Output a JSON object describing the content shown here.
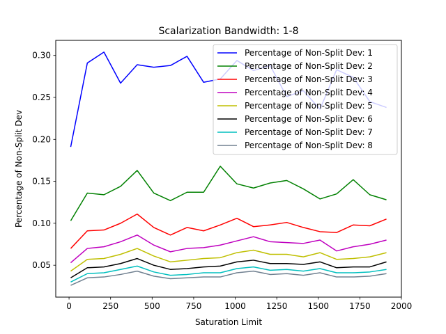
{
  "chart_data": {
    "type": "line",
    "title": "Scalarization Bandwidth: 1-8",
    "xlabel": "Saturation Limit",
    "ylabel": "Percentage of Non-Split Dev",
    "xlim": [
      -80,
      2000
    ],
    "ylim": [
      0.012,
      0.318
    ],
    "xticks": [
      0,
      250,
      500,
      750,
      1000,
      1250,
      1500,
      1750,
      2000
    ],
    "yticks": [
      0.05,
      0.1,
      0.15,
      0.2,
      0.25,
      0.3
    ],
    "xtick_labels": [
      "0",
      "250",
      "500",
      "750",
      "1000",
      "1250",
      "1500",
      "1750",
      "2000"
    ],
    "ytick_labels": [
      "0.05",
      "0.10",
      "0.15",
      "0.20",
      "0.25",
      "0.30"
    ],
    "grid": false,
    "legend_position": "top-right",
    "x": [
      10,
      110,
      210,
      310,
      410,
      510,
      610,
      710,
      810,
      910,
      1010,
      1110,
      1210,
      1310,
      1410,
      1510,
      1610,
      1710,
      1810,
      1910
    ],
    "series": [
      {
        "name": "Percentage of Non-Split Dev: 1",
        "color": "#0000ff",
        "values": [
          0.191,
          0.291,
          0.304,
          0.267,
          0.289,
          0.286,
          0.288,
          0.299,
          0.268,
          0.272,
          0.294,
          0.282,
          0.288,
          0.251,
          0.258,
          0.236,
          0.283,
          0.274,
          0.245,
          0.238
        ]
      },
      {
        "name": "Percentage of Non-Split Dev: 2",
        "color": "#008000",
        "values": [
          0.103,
          0.136,
          0.134,
          0.144,
          0.163,
          0.136,
          0.127,
          0.137,
          0.137,
          0.168,
          0.147,
          0.142,
          0.148,
          0.151,
          0.141,
          0.129,
          0.135,
          0.152,
          0.134,
          0.128
        ]
      },
      {
        "name": "Percentage of Non-Split Dev: 3",
        "color": "#ff0000",
        "values": [
          0.07,
          0.091,
          0.092,
          0.1,
          0.111,
          0.095,
          0.086,
          0.095,
          0.091,
          0.098,
          0.106,
          0.096,
          0.098,
          0.101,
          0.095,
          0.09,
          0.089,
          0.098,
          0.097,
          0.105
        ]
      },
      {
        "name": "Percentage of Non-Split Dev: 4",
        "color": "#bf00bf",
        "values": [
          0.053,
          0.07,
          0.072,
          0.078,
          0.086,
          0.074,
          0.066,
          0.07,
          0.071,
          0.074,
          0.079,
          0.084,
          0.078,
          0.077,
          0.076,
          0.08,
          0.067,
          0.072,
          0.075,
          0.08
        ]
      },
      {
        "name": "Percentage of Non-Split Dev: 5",
        "color": "#bfbf00",
        "values": [
          0.043,
          0.057,
          0.058,
          0.063,
          0.07,
          0.061,
          0.054,
          0.056,
          0.058,
          0.059,
          0.065,
          0.068,
          0.063,
          0.063,
          0.06,
          0.065,
          0.057,
          0.058,
          0.06,
          0.065
        ]
      },
      {
        "name": "Percentage of Non-Split Dev: 6",
        "color": "#000000",
        "values": [
          0.035,
          0.047,
          0.048,
          0.052,
          0.058,
          0.05,
          0.045,
          0.046,
          0.048,
          0.049,
          0.054,
          0.056,
          0.052,
          0.052,
          0.051,
          0.054,
          0.047,
          0.048,
          0.048,
          0.054
        ]
      },
      {
        "name": "Percentage of Non-Split Dev: 7",
        "color": "#00bfbf",
        "values": [
          0.03,
          0.04,
          0.041,
          0.045,
          0.049,
          0.042,
          0.038,
          0.039,
          0.041,
          0.041,
          0.046,
          0.048,
          0.044,
          0.045,
          0.043,
          0.046,
          0.041,
          0.041,
          0.042,
          0.045
        ]
      },
      {
        "name": "Percentage of Non-Split Dev: 8",
        "color": "#708090",
        "values": [
          0.026,
          0.035,
          0.036,
          0.039,
          0.043,
          0.037,
          0.034,
          0.035,
          0.036,
          0.036,
          0.041,
          0.043,
          0.039,
          0.04,
          0.038,
          0.041,
          0.036,
          0.036,
          0.037,
          0.04
        ]
      }
    ]
  }
}
